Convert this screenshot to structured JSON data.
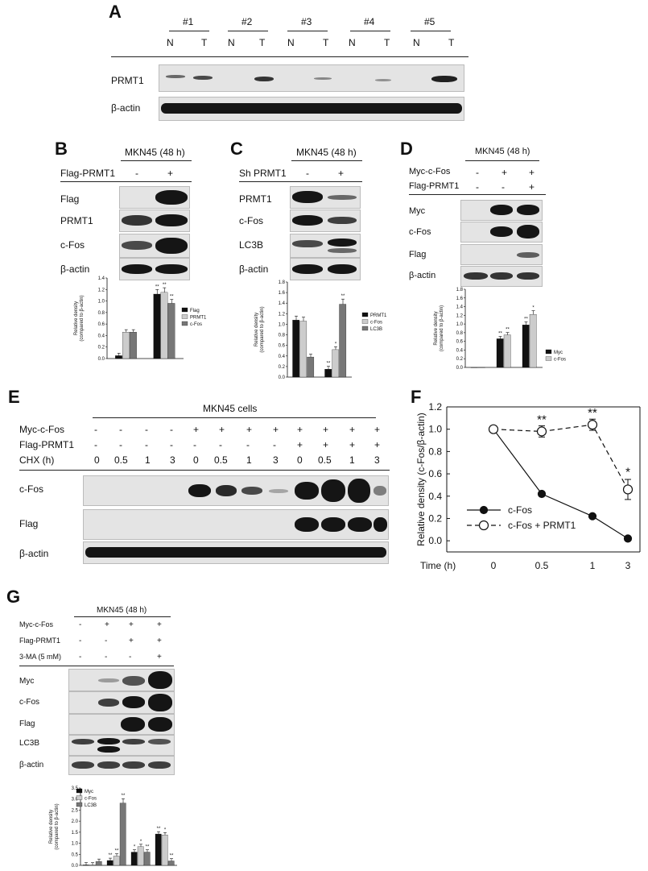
{
  "panelA": {
    "letter": "A",
    "samples": [
      "#1",
      "#2",
      "#3",
      "#4",
      "#5"
    ],
    "lanes": [
      "N",
      "T",
      "N",
      "T",
      "N",
      "T",
      "N",
      "T",
      "N",
      "T"
    ],
    "rows": [
      "PRMT1",
      "β-actin"
    ]
  },
  "panelB": {
    "letter": "B",
    "header": "MKN45 (48 h)",
    "cond_label": "Flag-PRMT1",
    "cond": [
      "-",
      "+"
    ],
    "rows": [
      "Flag",
      "PRMT1",
      "c-Fos",
      "β-actin"
    ]
  },
  "panelC": {
    "letter": "C",
    "header": "MKN45 (48 h)",
    "cond_label": "Sh PRMT1",
    "cond": [
      "-",
      "+"
    ],
    "rows": [
      "PRMT1",
      "c-Fos",
      "LC3B",
      "β-actin"
    ]
  },
  "panelD": {
    "letter": "D",
    "header": "MKN45 (48 h)",
    "cond_labels": [
      "Myc-c-Fos",
      "Flag-PRMT1"
    ],
    "cond_rows": [
      [
        "-",
        "+",
        "+"
      ],
      [
        "-",
        "-",
        "+"
      ]
    ],
    "rows": [
      "Myc",
      "c-Fos",
      "Flag",
      "β-actin"
    ]
  },
  "panelE": {
    "letter": "E",
    "header": "MKN45 cells",
    "cond_labels": [
      "Myc-c-Fos",
      "Flag-PRMT1",
      "CHX (h)"
    ],
    "cond_rows": [
      [
        "-",
        "-",
        "-",
        "-",
        "+",
        "+",
        "+",
        "+",
        "+",
        "+",
        "+",
        "+"
      ],
      [
        "-",
        "-",
        "-",
        "-",
        "-",
        "-",
        "-",
        "-",
        "+",
        "+",
        "+",
        "+"
      ],
      [
        "0",
        "0.5",
        "1",
        "3",
        "0",
        "0.5",
        "1",
        "3",
        "0",
        "0.5",
        "1",
        "3"
      ]
    ],
    "rows": [
      "c-Fos",
      "Flag",
      "β-actin"
    ]
  },
  "panelF": {
    "letter": "F"
  },
  "panelG": {
    "letter": "G",
    "header": "MKN45 (48 h)",
    "cond_labels": [
      "Myc-c-Fos",
      "Flag-PRMT1",
      "3-MA (5 mM)"
    ],
    "cond_rows": [
      [
        "-",
        "+",
        "+",
        "+"
      ],
      [
        "-",
        "-",
        "+",
        "+"
      ],
      [
        "-",
        "-",
        "-",
        "+"
      ]
    ],
    "rows": [
      "Myc",
      "c-Fos",
      "Flag",
      "LC3B",
      "β-actin"
    ]
  },
  "chart_data": [
    {
      "id": "B",
      "type": "bar",
      "ylabel": "Relative density (compared to β-actin)",
      "ylim": [
        0,
        1.4
      ],
      "yticks": [
        "0.0",
        "0.2",
        "0.4",
        "0.6",
        "0.8",
        "1.0",
        "1.2",
        "1.4"
      ],
      "groups": 2,
      "series": [
        {
          "name": "Flag",
          "values": [
            0.05,
            1.12
          ],
          "color": "#111111"
        },
        {
          "name": "PRMT1",
          "values": [
            0.46,
            1.15
          ],
          "color": "#cccccc"
        },
        {
          "name": "c-Fos",
          "values": [
            0.46,
            0.96
          ],
          "color": "#777777"
        }
      ],
      "annotations": [
        [
          null,
          null,
          null
        ],
        [
          "**",
          "**",
          "**"
        ]
      ]
    },
    {
      "id": "C",
      "type": "bar",
      "ylabel": "Relative density (compared to β-actin)",
      "ylim": [
        0,
        1.8
      ],
      "yticks": [
        "0.0",
        "0.2",
        "0.4",
        "0.6",
        "0.8",
        "1.0",
        "1.2",
        "1.4",
        "1.6",
        "1.8"
      ],
      "groups": 2,
      "series": [
        {
          "name": "PRMT1",
          "values": [
            1.08,
            0.15
          ],
          "color": "#111111"
        },
        {
          "name": "c-Fos",
          "values": [
            1.06,
            0.52
          ],
          "color": "#cccccc"
        },
        {
          "name": "LC3B",
          "values": [
            0.38,
            1.38
          ],
          "color": "#777777"
        }
      ],
      "annotations": [
        [
          null,
          null,
          null
        ],
        [
          "**",
          "*",
          "**"
        ]
      ]
    },
    {
      "id": "D",
      "type": "bar",
      "ylabel": "Relative density (compared to β-actin)",
      "ylim": [
        0,
        1.8
      ],
      "yticks": [
        "0.0",
        "0.2",
        "0.4",
        "0.6",
        "0.8",
        "1.0",
        "1.2",
        "1.4",
        "1.6",
        "1.8"
      ],
      "groups": 3,
      "series": [
        {
          "name": "Myc",
          "values": [
            0.0,
            0.66,
            0.98
          ],
          "color": "#111111"
        },
        {
          "name": "c-Fos",
          "values": [
            0.0,
            0.75,
            1.22
          ],
          "color": "#cccccc"
        }
      ],
      "annotations": [
        [
          null,
          null
        ],
        [
          "**",
          "**"
        ],
        [
          "**",
          "*"
        ]
      ]
    },
    {
      "id": "F",
      "type": "line",
      "xlabel": "Time (h)",
      "ylabel": "Relative density (c-Fos/β-actin)",
      "categories": [
        "0",
        "0.5",
        "1",
        "3"
      ],
      "ylim": [
        -0.1,
        1.2
      ],
      "yticks": [
        "0.0",
        "0.2",
        "0.4",
        "0.6",
        "0.8",
        "1.0",
        "1.2"
      ],
      "series": [
        {
          "name": "c-Fos",
          "values": [
            1.0,
            0.42,
            0.22,
            0.02
          ],
          "style": "solid-filled"
        },
        {
          "name": "c-Fos + PRMT1",
          "values": [
            1.0,
            0.98,
            1.04,
            0.46
          ],
          "style": "dashed-open"
        }
      ],
      "annotations": [
        null,
        "**",
        "**",
        "*"
      ]
    },
    {
      "id": "G",
      "type": "bar",
      "ylabel": "Relative density (compared to β-actin)",
      "ylim": [
        0,
        3.5
      ],
      "yticks": [
        "0.0",
        "0.5",
        "1.0",
        "1.5",
        "2.0",
        "2.5",
        "3.0",
        "3.5"
      ],
      "groups": 4,
      "series": [
        {
          "name": "Myc",
          "values": [
            0.02,
            0.22,
            0.6,
            1.42
          ],
          "color": "#111111"
        },
        {
          "name": "c-Fos",
          "values": [
            0.02,
            0.42,
            0.85,
            1.38
          ],
          "color": "#cccccc"
        },
        {
          "name": "LC3B",
          "values": [
            0.18,
            2.82,
            0.6,
            0.2
          ],
          "color": "#777777"
        }
      ],
      "annotations": [
        [
          null,
          null,
          null
        ],
        [
          "**",
          "**",
          "**"
        ],
        [
          "*",
          "*",
          "**"
        ],
        [
          "**",
          "*",
          "**"
        ]
      ]
    }
  ]
}
